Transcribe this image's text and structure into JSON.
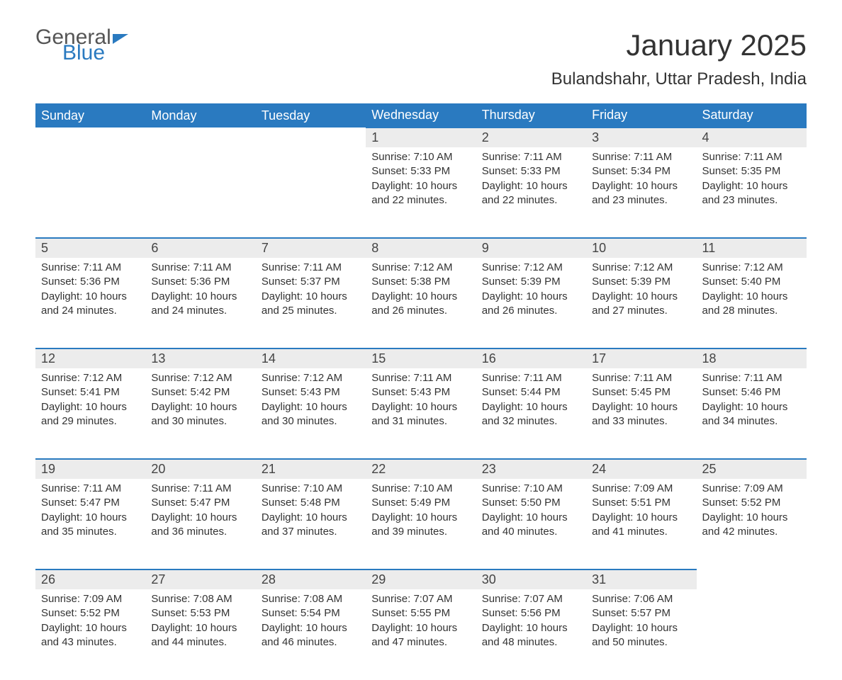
{
  "logo": {
    "text1": "General",
    "text2": "Blue"
  },
  "title": "January 2025",
  "location": "Bulandshahr, Uttar Pradesh, India",
  "colors": {
    "brand_blue": "#2a7ac0",
    "header_text": "#ffffff",
    "daynum_bg": "#ececec",
    "body_text": "#333333",
    "background": "#ffffff"
  },
  "day_headers": [
    "Sunday",
    "Monday",
    "Tuesday",
    "Wednesday",
    "Thursday",
    "Friday",
    "Saturday"
  ],
  "weeks": [
    [
      null,
      null,
      null,
      {
        "day": "1",
        "sunrise": "Sunrise: 7:10 AM",
        "sunset": "Sunset: 5:33 PM",
        "daylight": "Daylight: 10 hours and 22 minutes."
      },
      {
        "day": "2",
        "sunrise": "Sunrise: 7:11 AM",
        "sunset": "Sunset: 5:33 PM",
        "daylight": "Daylight: 10 hours and 22 minutes."
      },
      {
        "day": "3",
        "sunrise": "Sunrise: 7:11 AM",
        "sunset": "Sunset: 5:34 PM",
        "daylight": "Daylight: 10 hours and 23 minutes."
      },
      {
        "day": "4",
        "sunrise": "Sunrise: 7:11 AM",
        "sunset": "Sunset: 5:35 PM",
        "daylight": "Daylight: 10 hours and 23 minutes."
      }
    ],
    [
      {
        "day": "5",
        "sunrise": "Sunrise: 7:11 AM",
        "sunset": "Sunset: 5:36 PM",
        "daylight": "Daylight: 10 hours and 24 minutes."
      },
      {
        "day": "6",
        "sunrise": "Sunrise: 7:11 AM",
        "sunset": "Sunset: 5:36 PM",
        "daylight": "Daylight: 10 hours and 24 minutes."
      },
      {
        "day": "7",
        "sunrise": "Sunrise: 7:11 AM",
        "sunset": "Sunset: 5:37 PM",
        "daylight": "Daylight: 10 hours and 25 minutes."
      },
      {
        "day": "8",
        "sunrise": "Sunrise: 7:12 AM",
        "sunset": "Sunset: 5:38 PM",
        "daylight": "Daylight: 10 hours and 26 minutes."
      },
      {
        "day": "9",
        "sunrise": "Sunrise: 7:12 AM",
        "sunset": "Sunset: 5:39 PM",
        "daylight": "Daylight: 10 hours and 26 minutes."
      },
      {
        "day": "10",
        "sunrise": "Sunrise: 7:12 AM",
        "sunset": "Sunset: 5:39 PM",
        "daylight": "Daylight: 10 hours and 27 minutes."
      },
      {
        "day": "11",
        "sunrise": "Sunrise: 7:12 AM",
        "sunset": "Sunset: 5:40 PM",
        "daylight": "Daylight: 10 hours and 28 minutes."
      }
    ],
    [
      {
        "day": "12",
        "sunrise": "Sunrise: 7:12 AM",
        "sunset": "Sunset: 5:41 PM",
        "daylight": "Daylight: 10 hours and 29 minutes."
      },
      {
        "day": "13",
        "sunrise": "Sunrise: 7:12 AM",
        "sunset": "Sunset: 5:42 PM",
        "daylight": "Daylight: 10 hours and 30 minutes."
      },
      {
        "day": "14",
        "sunrise": "Sunrise: 7:12 AM",
        "sunset": "Sunset: 5:43 PM",
        "daylight": "Daylight: 10 hours and 30 minutes."
      },
      {
        "day": "15",
        "sunrise": "Sunrise: 7:11 AM",
        "sunset": "Sunset: 5:43 PM",
        "daylight": "Daylight: 10 hours and 31 minutes."
      },
      {
        "day": "16",
        "sunrise": "Sunrise: 7:11 AM",
        "sunset": "Sunset: 5:44 PM",
        "daylight": "Daylight: 10 hours and 32 minutes."
      },
      {
        "day": "17",
        "sunrise": "Sunrise: 7:11 AM",
        "sunset": "Sunset: 5:45 PM",
        "daylight": "Daylight: 10 hours and 33 minutes."
      },
      {
        "day": "18",
        "sunrise": "Sunrise: 7:11 AM",
        "sunset": "Sunset: 5:46 PM",
        "daylight": "Daylight: 10 hours and 34 minutes."
      }
    ],
    [
      {
        "day": "19",
        "sunrise": "Sunrise: 7:11 AM",
        "sunset": "Sunset: 5:47 PM",
        "daylight": "Daylight: 10 hours and 35 minutes."
      },
      {
        "day": "20",
        "sunrise": "Sunrise: 7:11 AM",
        "sunset": "Sunset: 5:47 PM",
        "daylight": "Daylight: 10 hours and 36 minutes."
      },
      {
        "day": "21",
        "sunrise": "Sunrise: 7:10 AM",
        "sunset": "Sunset: 5:48 PM",
        "daylight": "Daylight: 10 hours and 37 minutes."
      },
      {
        "day": "22",
        "sunrise": "Sunrise: 7:10 AM",
        "sunset": "Sunset: 5:49 PM",
        "daylight": "Daylight: 10 hours and 39 minutes."
      },
      {
        "day": "23",
        "sunrise": "Sunrise: 7:10 AM",
        "sunset": "Sunset: 5:50 PM",
        "daylight": "Daylight: 10 hours and 40 minutes."
      },
      {
        "day": "24",
        "sunrise": "Sunrise: 7:09 AM",
        "sunset": "Sunset: 5:51 PM",
        "daylight": "Daylight: 10 hours and 41 minutes."
      },
      {
        "day": "25",
        "sunrise": "Sunrise: 7:09 AM",
        "sunset": "Sunset: 5:52 PM",
        "daylight": "Daylight: 10 hours and 42 minutes."
      }
    ],
    [
      {
        "day": "26",
        "sunrise": "Sunrise: 7:09 AM",
        "sunset": "Sunset: 5:52 PM",
        "daylight": "Daylight: 10 hours and 43 minutes."
      },
      {
        "day": "27",
        "sunrise": "Sunrise: 7:08 AM",
        "sunset": "Sunset: 5:53 PM",
        "daylight": "Daylight: 10 hours and 44 minutes."
      },
      {
        "day": "28",
        "sunrise": "Sunrise: 7:08 AM",
        "sunset": "Sunset: 5:54 PM",
        "daylight": "Daylight: 10 hours and 46 minutes."
      },
      {
        "day": "29",
        "sunrise": "Sunrise: 7:07 AM",
        "sunset": "Sunset: 5:55 PM",
        "daylight": "Daylight: 10 hours and 47 minutes."
      },
      {
        "day": "30",
        "sunrise": "Sunrise: 7:07 AM",
        "sunset": "Sunset: 5:56 PM",
        "daylight": "Daylight: 10 hours and 48 minutes."
      },
      {
        "day": "31",
        "sunrise": "Sunrise: 7:06 AM",
        "sunset": "Sunset: 5:57 PM",
        "daylight": "Daylight: 10 hours and 50 minutes."
      },
      null
    ]
  ]
}
